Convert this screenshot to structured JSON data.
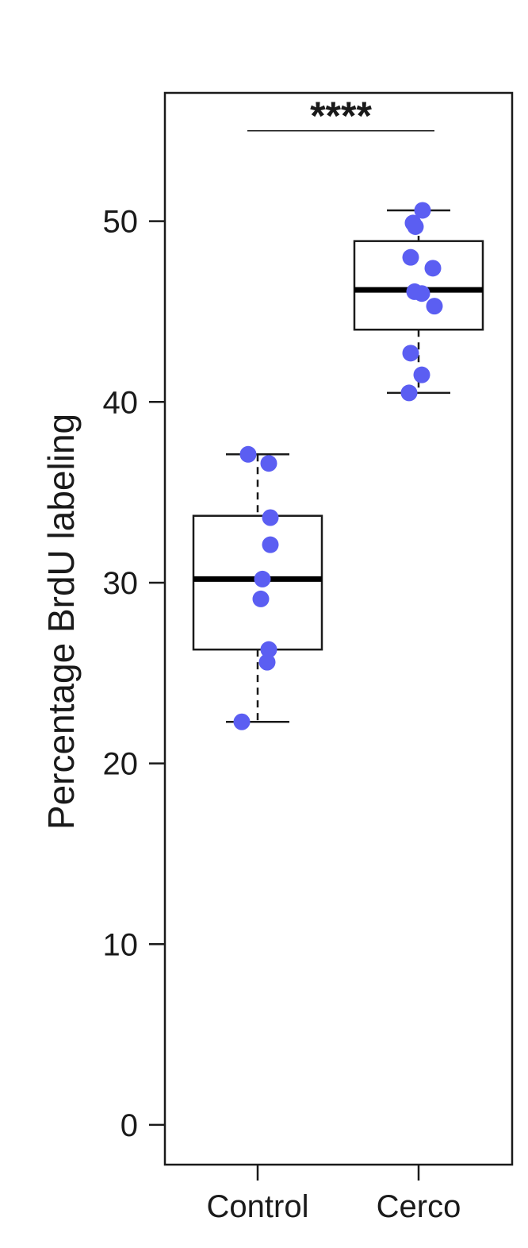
{
  "chart_data": {
    "type": "box",
    "title": "",
    "xlabel": "",
    "ylabel": "Percentage BrdU labeling",
    "ylim": [
      -2.2,
      57.1
    ],
    "yticks": [
      "0",
      "10",
      "20",
      "30",
      "40",
      "50"
    ],
    "categories": [
      "Control",
      "Cerco"
    ],
    "point_color": "#5b5ef2",
    "groups": [
      {
        "name": "Control",
        "whisker_low": 22.3,
        "q1": 26.3,
        "median": 30.2,
        "q3": 33.7,
        "whisker_high": 37.1,
        "points": [
          37.1,
          36.6,
          33.6,
          32.1,
          30.2,
          29.1,
          26.3,
          25.6,
          22.3
        ]
      },
      {
        "name": "Cerco",
        "whisker_low": 40.5,
        "q1": 44.0,
        "median": 46.2,
        "q3": 48.9,
        "whisker_high": 50.6,
        "points": [
          50.6,
          49.9,
          49.7,
          48.0,
          47.4,
          46.1,
          46.0,
          45.3,
          42.7,
          41.5,
          40.5
        ]
      }
    ],
    "significance": {
      "label": "****",
      "between": [
        "Control",
        "Cerco"
      ],
      "level": 55.0
    }
  }
}
